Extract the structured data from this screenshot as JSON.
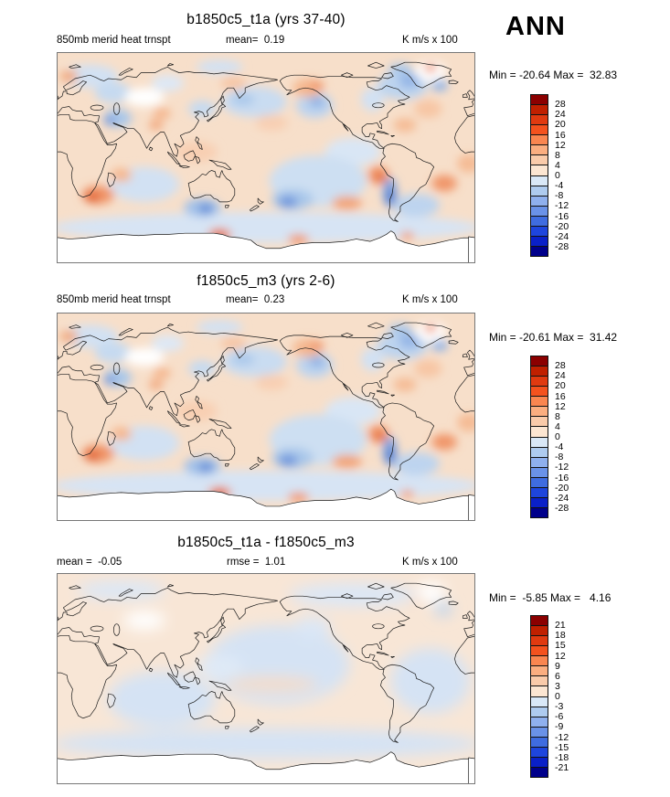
{
  "figure": {
    "season": "ANN",
    "variable": "850mb merid heat trnspt",
    "units": "K m/s x 100"
  },
  "colors": {
    "scale": [
      "#8b0000",
      "#c02000",
      "#e03a10",
      "#f4521e",
      "#fa8650",
      "#fbae80",
      "#facbaa",
      "#fce6d2",
      "#d9e8f7",
      "#aecbef",
      "#8fb0ee",
      "#6a92e8",
      "#3f6ce0",
      "#1e45dd",
      "#0a20c8",
      "#00008b"
    ]
  },
  "panels": [
    {
      "title": "b1850c5_t1a (yrs 37-40)",
      "left_label": "850mb merid heat trnspt",
      "mid_label": "mean=  0.19",
      "right_label": "K m/s x 100",
      "stats": "Min = -20.64 Max =  32.83",
      "colorbar_labels": [
        "28",
        "24",
        "20",
        "16",
        "12",
        "8",
        "4",
        "0",
        "-4",
        "-8",
        "-12",
        "-16",
        "-20",
        "-24",
        "-28"
      ]
    },
    {
      "title": "f1850c5_m3 (yrs 2-6)",
      "left_label": "850mb merid heat trnspt",
      "mid_label": "mean=  0.23",
      "right_label": "K m/s x 100",
      "stats": "Min = -20.61 Max =  31.42",
      "colorbar_labels": [
        "28",
        "24",
        "20",
        "16",
        "12",
        "8",
        "4",
        "0",
        "-4",
        "-8",
        "-12",
        "-16",
        "-20",
        "-24",
        "-28"
      ]
    },
    {
      "title": "b1850c5_t1a - f1850c5_m3",
      "left_label": "mean =  -0.05",
      "mid_label": "rmse =  1.01",
      "right_label": "K m/s x 100",
      "stats": "Min =  -5.85 Max =   4.16",
      "colorbar_labels": [
        "21",
        "18",
        "15",
        "12",
        "9",
        "6",
        "3",
        "0",
        "-3",
        "-6",
        "-9",
        "-12",
        "-15",
        "-18",
        "-21"
      ]
    }
  ],
  "chart_data": [
    {
      "type": "heatmap",
      "subtype": "filled-contour-world-map",
      "title": "b1850c5_t1a (yrs 37-40)",
      "variable": "850mb merid heat trnspt",
      "units": "K m/s x 100",
      "season": "ANN",
      "mean": 0.19,
      "min": -20.64,
      "max": 32.83,
      "contour_levels": [
        -28,
        -24,
        -20,
        -16,
        -12,
        -8,
        -4,
        0,
        4,
        8,
        12,
        16,
        20,
        24,
        28
      ],
      "colormap": "blue-white-red diverging",
      "legend_position": "right",
      "projection": "cylindrical equidistant, longitude 0-360E, latitude 90N-90S"
    },
    {
      "type": "heatmap",
      "subtype": "filled-contour-world-map",
      "title": "f1850c5_m3 (yrs 2-6)",
      "variable": "850mb merid heat trnspt",
      "units": "K m/s x 100",
      "season": "ANN",
      "mean": 0.23,
      "min": -20.61,
      "max": 31.42,
      "contour_levels": [
        -28,
        -24,
        -20,
        -16,
        -12,
        -8,
        -4,
        0,
        4,
        8,
        12,
        16,
        20,
        24,
        28
      ],
      "colormap": "blue-white-red diverging",
      "legend_position": "right",
      "projection": "cylindrical equidistant, longitude 0-360E, latitude 90N-90S"
    },
    {
      "type": "heatmap",
      "subtype": "filled-contour-world-map-difference",
      "title": "b1850c5_t1a - f1850c5_m3",
      "variable": "850mb merid heat trnspt",
      "units": "K m/s x 100",
      "season": "ANN",
      "mean": -0.05,
      "rmse": 1.01,
      "min": -5.85,
      "max": 4.16,
      "contour_levels": [
        -21,
        -18,
        -15,
        -12,
        -9,
        -6,
        -3,
        0,
        3,
        6,
        9,
        12,
        15,
        18,
        21
      ],
      "colormap": "blue-white-red diverging",
      "legend_position": "right",
      "projection": "cylindrical equidistant, longitude 0-360E, latitude 90N-90S"
    }
  ]
}
